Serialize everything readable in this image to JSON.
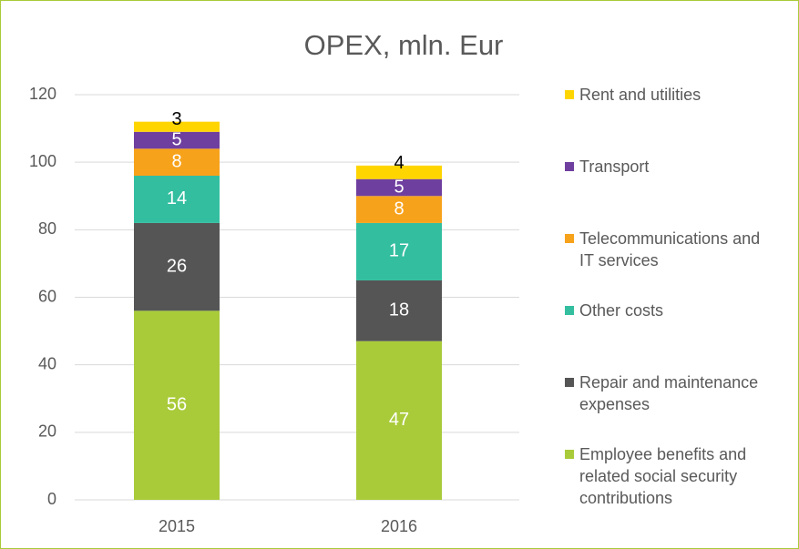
{
  "chart_data": {
    "type": "stacked_bar",
    "title": "OPEX, mln. Eur",
    "categories": [
      "2015",
      "2016"
    ],
    "series": [
      {
        "name": "Employee benefits and related social security contributions",
        "color": "#a9cb3a",
        "label_color": "#ffffff",
        "values": [
          56,
          47
        ]
      },
      {
        "name": "Repair and maintenance expenses",
        "color": "#555555",
        "label_color": "#ffffff",
        "values": [
          26,
          18
        ]
      },
      {
        "name": "Other costs",
        "color": "#33bea0",
        "label_color": "#ffffff",
        "values": [
          14,
          17
        ]
      },
      {
        "name": "Telecommunications and IT services",
        "color": "#f7a21b",
        "label_color": "#ffffff",
        "values": [
          8,
          8
        ]
      },
      {
        "name": "Transport",
        "color": "#6f3f9f",
        "label_color": "#ffffff",
        "values": [
          5,
          5
        ]
      },
      {
        "name": "Rent and utilities",
        "color": "#ffd500",
        "label_color": "#000000",
        "values": [
          3,
          4
        ]
      }
    ],
    "ylim": [
      0,
      120
    ],
    "yticks": [
      0,
      20,
      40,
      60,
      80,
      100,
      120
    ],
    "grid": true,
    "legend": "right"
  }
}
